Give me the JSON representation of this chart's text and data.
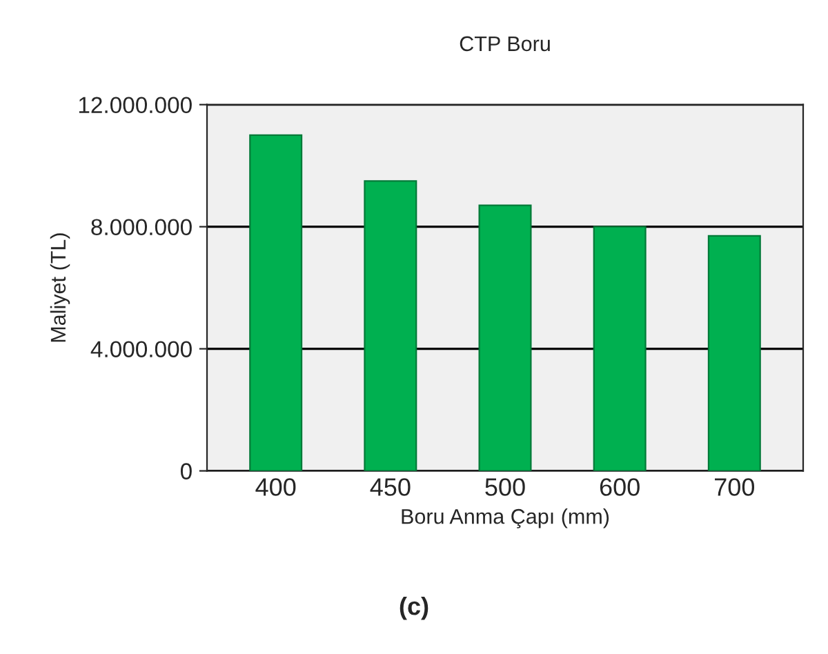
{
  "chart_data": {
    "type": "bar",
    "title": "CTP Boru",
    "xlabel": "Boru Anma Çapı (mm)",
    "ylabel": "Maliyet (TL)",
    "categories": [
      "400",
      "450",
      "500",
      "600",
      "700"
    ],
    "values": [
      11000000,
      9500000,
      8700000,
      8000000,
      7700000
    ],
    "color": "#00b050",
    "ylim": [
      0,
      12000000
    ],
    "yticks": [
      {
        "value": 0,
        "label": "0"
      },
      {
        "value": 4000000,
        "label": "4.000.000"
      },
      {
        "value": 8000000,
        "label": "8.000.000"
      },
      {
        "value": 12000000,
        "label": "12.000.000"
      }
    ],
    "grid": "y",
    "legend": false,
    "annotations": [
      "(c)"
    ]
  }
}
